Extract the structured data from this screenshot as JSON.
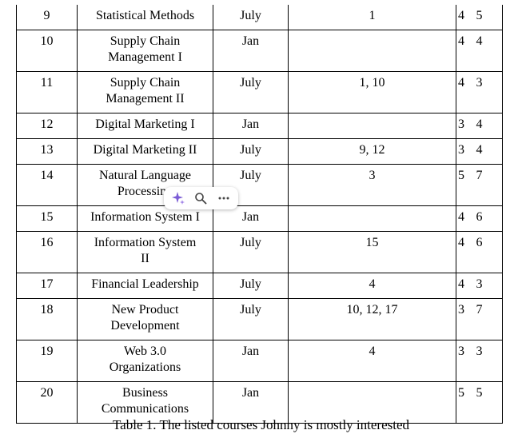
{
  "table": {
    "rows": [
      {
        "no": "9",
        "course": "Statistical Methods",
        "term": "July",
        "prereq": "1",
        "c5": "4",
        "c6": "5"
      },
      {
        "no": "10",
        "course": "Supply Chain\nManagement I",
        "term": "Jan",
        "prereq": "",
        "c5": "4",
        "c6": "4"
      },
      {
        "no": "11",
        "course": "Supply Chain\nManagement II",
        "term": "July",
        "prereq": "1, 10",
        "c5": "4",
        "c6": "3"
      },
      {
        "no": "12",
        "course": "Digital Marketing I",
        "term": "Jan",
        "prereq": "",
        "c5": "3",
        "c6": "4"
      },
      {
        "no": "13",
        "course": "Digital Marketing II",
        "term": "July",
        "prereq": "9, 12",
        "c5": "3",
        "c6": "4"
      },
      {
        "no": "14",
        "course": "Natural Language\nProcessing",
        "term": "July",
        "prereq": "3",
        "c5": "5",
        "c6": "7"
      },
      {
        "no": "15",
        "course": "Information System I",
        "term": "Jan",
        "prereq": "",
        "c5": "4",
        "c6": "6"
      },
      {
        "no": "16",
        "course": "Information System\nII",
        "term": "July",
        "prereq": "15",
        "c5": "4",
        "c6": "6"
      },
      {
        "no": "17",
        "course": "Financial Leadership",
        "term": "July",
        "prereq": "4",
        "c5": "4",
        "c6": "3"
      },
      {
        "no": "18",
        "course": "New Product\nDevelopment",
        "term": "July",
        "prereq": "10, 12, 17",
        "c5": "3",
        "c6": "7"
      },
      {
        "no": "19",
        "course": "Web 3.0\nOrganizations",
        "term": "Jan",
        "prereq": "4",
        "c5": "3",
        "c6": "3"
      },
      {
        "no": "20",
        "course": "Business\nCommunications",
        "term": "Jan",
        "prereq": "",
        "c5": "5",
        "c6": "5"
      }
    ]
  },
  "caption": "Table 1. The listed courses Johnny is mostly interested",
  "toolbar": {
    "icons": [
      "sparkle-icon",
      "search-icon",
      "more-icon"
    ],
    "accent": "#7b5cd6"
  }
}
